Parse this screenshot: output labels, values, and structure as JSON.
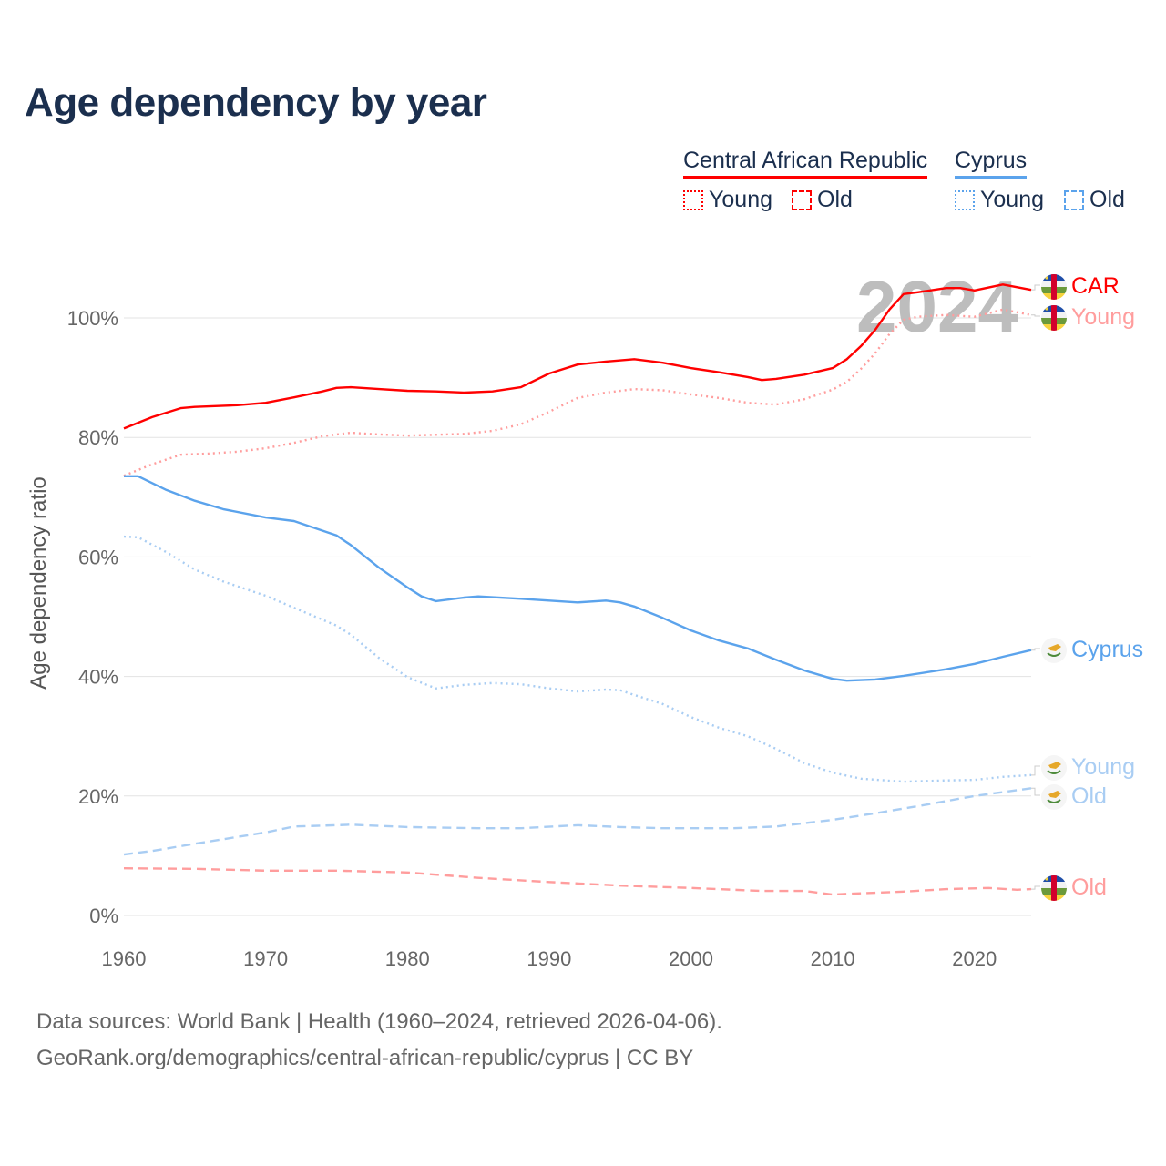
{
  "title": "Age dependency by year",
  "legend": {
    "countries": [
      {
        "name": "Central African Republic",
        "color": "#ff0000"
      },
      {
        "name": "Cyprus",
        "color": "#5ba3ec"
      }
    ],
    "styles": {
      "young": "Young",
      "old": "Old"
    }
  },
  "footer": {
    "line1": "Data sources: World Bank | Health (1960–2024, retrieved 2026-04-06).",
    "line2": "GeoRank.org/demographics/central-african-republic/cyprus | CC BY"
  },
  "chart_data": {
    "type": "line",
    "title": "Age dependency by year",
    "xlabel": "",
    "ylabel": "Age dependency ratio",
    "xlim": [
      1960,
      2024
    ],
    "ylim": [
      0,
      110
    ],
    "x_ticks": [
      "1960",
      "1970",
      "1980",
      "1990",
      "2000",
      "2010",
      "2020"
    ],
    "y_ticks": [
      "0%",
      "20%",
      "40%",
      "60%",
      "80%",
      "100%"
    ],
    "watermark_year": "2024",
    "grid": true,
    "legend_position": "top-right",
    "series": [
      {
        "name": "Central African Republic",
        "end_label": "CAR",
        "kind": "total",
        "color": "#ff0000",
        "points": [
          [
            1960,
            81.5
          ],
          [
            1962,
            83.4
          ],
          [
            1964,
            84.9
          ],
          [
            1965,
            85.1
          ],
          [
            1968,
            85.4
          ],
          [
            1970,
            85.8
          ],
          [
            1972,
            86.7
          ],
          [
            1974,
            87.7
          ],
          [
            1975,
            88.3
          ],
          [
            1976,
            88.4
          ],
          [
            1978,
            88.1
          ],
          [
            1980,
            87.8
          ],
          [
            1982,
            87.7
          ],
          [
            1984,
            87.5
          ],
          [
            1986,
            87.7
          ],
          [
            1988,
            88.4
          ],
          [
            1990,
            90.7
          ],
          [
            1992,
            92.2
          ],
          [
            1994,
            92.7
          ],
          [
            1996,
            93.1
          ],
          [
            1998,
            92.5
          ],
          [
            2000,
            91.6
          ],
          [
            2002,
            90.9
          ],
          [
            2004,
            90.1
          ],
          [
            2005,
            89.6
          ],
          [
            2006,
            89.8
          ],
          [
            2008,
            90.5
          ],
          [
            2010,
            91.6
          ],
          [
            2011,
            93.1
          ],
          [
            2012,
            95.3
          ],
          [
            2013,
            98.0
          ],
          [
            2014,
            101.4
          ],
          [
            2015,
            104.0
          ],
          [
            2016,
            104.3
          ],
          [
            2018,
            105.0
          ],
          [
            2019,
            105.0
          ],
          [
            2020,
            104.6
          ],
          [
            2022,
            105.6
          ],
          [
            2024,
            104.7
          ]
        ]
      },
      {
        "name": "Central African Republic Young",
        "end_label": "Young",
        "kind": "young",
        "color": "#ff9d9d",
        "points": [
          [
            1960,
            73.6
          ],
          [
            1962,
            75.5
          ],
          [
            1964,
            77.1
          ],
          [
            1966,
            77.3
          ],
          [
            1968,
            77.6
          ],
          [
            1970,
            78.2
          ],
          [
            1972,
            79.1
          ],
          [
            1974,
            80.2
          ],
          [
            1976,
            80.8
          ],
          [
            1978,
            80.5
          ],
          [
            1980,
            80.3
          ],
          [
            1984,
            80.6
          ],
          [
            1986,
            81.1
          ],
          [
            1988,
            82.2
          ],
          [
            1990,
            84.3
          ],
          [
            1992,
            86.6
          ],
          [
            1994,
            87.5
          ],
          [
            1996,
            88.1
          ],
          [
            1998,
            87.9
          ],
          [
            2000,
            87.2
          ],
          [
            2002,
            86.6
          ],
          [
            2004,
            85.8
          ],
          [
            2006,
            85.5
          ],
          [
            2008,
            86.4
          ],
          [
            2010,
            88.0
          ],
          [
            2011,
            89.3
          ],
          [
            2012,
            91.5
          ],
          [
            2013,
            94.1
          ],
          [
            2014,
            97.3
          ],
          [
            2015,
            99.7
          ],
          [
            2016,
            100.2
          ],
          [
            2018,
            100.5
          ],
          [
            2020,
            100.2
          ],
          [
            2022,
            101.4
          ],
          [
            2024,
            100.5
          ]
        ]
      },
      {
        "name": "Central African Republic Old",
        "end_label": "Old",
        "kind": "old",
        "color": "#ff9d9d",
        "points": [
          [
            1960,
            7.9
          ],
          [
            1965,
            7.8
          ],
          [
            1970,
            7.5
          ],
          [
            1975,
            7.5
          ],
          [
            1980,
            7.2
          ],
          [
            1985,
            6.3
          ],
          [
            1990,
            5.6
          ],
          [
            1995,
            5.0
          ],
          [
            2000,
            4.6
          ],
          [
            2005,
            4.1
          ],
          [
            2008,
            4.1
          ],
          [
            2010,
            3.5
          ],
          [
            2012,
            3.7
          ],
          [
            2015,
            4.0
          ],
          [
            2018,
            4.4
          ],
          [
            2021,
            4.6
          ],
          [
            2023,
            4.3
          ],
          [
            2024,
            4.4
          ]
        ]
      },
      {
        "name": "Cyprus",
        "end_label": "Cyprus",
        "kind": "total",
        "color": "#5ba3ec",
        "points": [
          [
            1960,
            73.5
          ],
          [
            1961,
            73.5
          ],
          [
            1963,
            71.2
          ],
          [
            1965,
            69.4
          ],
          [
            1967,
            68.0
          ],
          [
            1970,
            66.6
          ],
          [
            1972,
            66.0
          ],
          [
            1973,
            65.2
          ],
          [
            1975,
            63.6
          ],
          [
            1976,
            62.0
          ],
          [
            1978,
            58.2
          ],
          [
            1980,
            54.9
          ],
          [
            1981,
            53.4
          ],
          [
            1982,
            52.6
          ],
          [
            1984,
            53.2
          ],
          [
            1985,
            53.4
          ],
          [
            1988,
            53.0
          ],
          [
            1990,
            52.7
          ],
          [
            1992,
            52.4
          ],
          [
            1994,
            52.7
          ],
          [
            1995,
            52.4
          ],
          [
            1996,
            51.7
          ],
          [
            1998,
            49.8
          ],
          [
            2000,
            47.7
          ],
          [
            2002,
            46.0
          ],
          [
            2004,
            44.7
          ],
          [
            2006,
            42.8
          ],
          [
            2008,
            41.0
          ],
          [
            2010,
            39.6
          ],
          [
            2011,
            39.3
          ],
          [
            2013,
            39.5
          ],
          [
            2015,
            40.1
          ],
          [
            2018,
            41.2
          ],
          [
            2020,
            42.1
          ],
          [
            2022,
            43.3
          ],
          [
            2024,
            44.4
          ]
        ]
      },
      {
        "name": "Cyprus Young",
        "end_label": "Young",
        "kind": "young",
        "color": "#a9cdf3",
        "points": [
          [
            1960,
            63.4
          ],
          [
            1961,
            63.3
          ],
          [
            1963,
            60.8
          ],
          [
            1965,
            57.9
          ],
          [
            1967,
            55.9
          ],
          [
            1970,
            53.5
          ],
          [
            1972,
            51.5
          ],
          [
            1975,
            48.5
          ],
          [
            1976,
            47.0
          ],
          [
            1978,
            43.1
          ],
          [
            1980,
            39.9
          ],
          [
            1982,
            38.0
          ],
          [
            1984,
            38.6
          ],
          [
            1986,
            38.9
          ],
          [
            1988,
            38.7
          ],
          [
            1990,
            38.0
          ],
          [
            1992,
            37.5
          ],
          [
            1994,
            37.8
          ],
          [
            1995,
            37.7
          ],
          [
            1996,
            36.9
          ],
          [
            1998,
            35.4
          ],
          [
            2000,
            33.2
          ],
          [
            2002,
            31.4
          ],
          [
            2004,
            30.0
          ],
          [
            2006,
            27.9
          ],
          [
            2008,
            25.5
          ],
          [
            2010,
            23.9
          ],
          [
            2012,
            22.9
          ],
          [
            2015,
            22.4
          ],
          [
            2018,
            22.6
          ],
          [
            2020,
            22.7
          ],
          [
            2022,
            23.2
          ],
          [
            2024,
            23.5
          ]
        ]
      },
      {
        "name": "Cyprus Old",
        "end_label": "Old",
        "kind": "old",
        "color": "#a9cdf3",
        "points": [
          [
            1960,
            10.2
          ],
          [
            1962,
            10.8
          ],
          [
            1965,
            12.0
          ],
          [
            1970,
            13.9
          ],
          [
            1972,
            14.9
          ],
          [
            1975,
            15.1
          ],
          [
            1976,
            15.2
          ],
          [
            1980,
            14.8
          ],
          [
            1985,
            14.6
          ],
          [
            1988,
            14.6
          ],
          [
            1992,
            15.1
          ],
          [
            1995,
            14.8
          ],
          [
            1998,
            14.6
          ],
          [
            2003,
            14.6
          ],
          [
            2006,
            14.9
          ],
          [
            2010,
            16.0
          ],
          [
            2013,
            17.1
          ],
          [
            2016,
            18.3
          ],
          [
            2020,
            20.0
          ],
          [
            2024,
            21.3
          ]
        ]
      }
    ]
  }
}
